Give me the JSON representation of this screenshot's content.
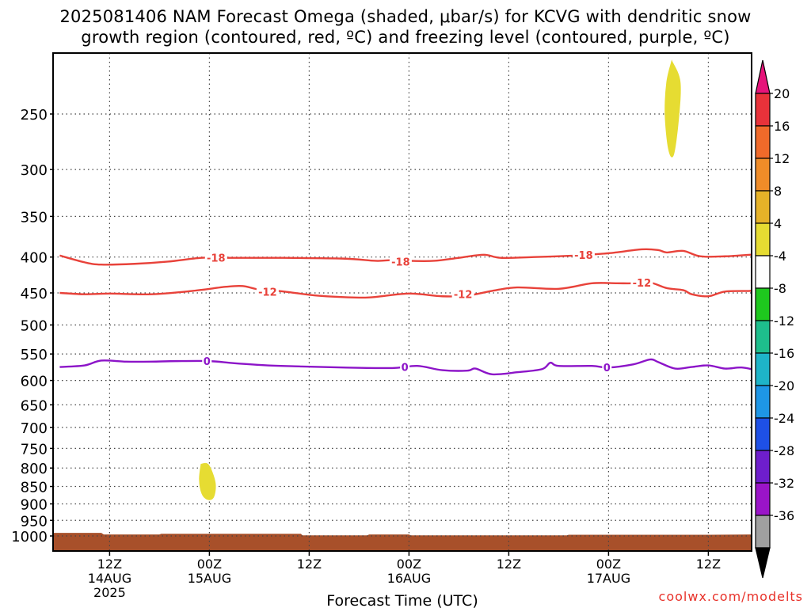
{
  "chart_data": {
    "type": "time-height",
    "title_line1": "2025081406 NAM Forecast Omega (shaded, μbar/s) for KCVG with dendritic snow",
    "title_line2": "growth region (contoured, red, ºC) and freezing level (contoured, purple, ºC)",
    "xlabel": "Forecast Time (UTC)",
    "x_ticks": [
      {
        "t": 6,
        "label": "12Z",
        "sub1": "14AUG",
        "sub2": "2025"
      },
      {
        "t": 18,
        "label": "00Z",
        "sub1": "15AUG",
        "sub2": ""
      },
      {
        "t": 30,
        "label": "12Z",
        "sub1": "",
        "sub2": ""
      },
      {
        "t": 42,
        "label": "00Z",
        "sub1": "16AUG",
        "sub2": ""
      },
      {
        "t": 54,
        "label": "12Z",
        "sub1": "",
        "sub2": ""
      },
      {
        "t": 66,
        "label": "00Z",
        "sub1": "17AUG",
        "sub2": ""
      },
      {
        "t": 78,
        "label": "12Z",
        "sub1": "",
        "sub2": ""
      }
    ],
    "x_range_hours": [
      0,
      84
    ],
    "y_pressure_ticks": [
      250,
      300,
      350,
      400,
      450,
      500,
      550,
      600,
      650,
      700,
      750,
      800,
      850,
      900,
      950,
      1000
    ],
    "y_range_hpa": [
      200,
      1020
    ],
    "y_scale": "log-pressure",
    "grid": true,
    "colorbar": {
      "labels": [
        "20",
        "16",
        "12",
        "8",
        "4",
        "-4",
        "-8",
        "-12",
        "-16",
        "-20",
        "-24",
        "-28",
        "-32",
        "-36"
      ],
      "colors": [
        "#e8323a",
        "#f06a2a",
        "#f08c28",
        "#e6b228",
        "#e6dc32",
        "#ffffff",
        "#1ec81e",
        "#1ebe8c",
        "#1eb4c8",
        "#1e96e6",
        "#1e50e6",
        "#6e1ecc",
        "#9a14c8",
        "#a0a0a0"
      ],
      "top_arrow_color": "#e6147a",
      "bottom_arrow_color": "#000000"
    },
    "omega_shaded_regions": [
      {
        "color": "#e6dc32",
        "range": "4 to 8",
        "points": [
          [
            73.6,
            210
          ],
          [
            74.6,
            225
          ],
          [
            74.4,
            255
          ],
          [
            73.8,
            286
          ],
          [
            73.2,
            280
          ],
          [
            72.8,
            250
          ],
          [
            73.0,
            225
          ]
        ]
      },
      {
        "color": "#e6dc32",
        "range": "4 to 8",
        "points": [
          [
            17.0,
            790
          ],
          [
            17.9,
            792
          ],
          [
            18.7,
            840
          ],
          [
            18.5,
            880
          ],
          [
            17.8,
            887
          ],
          [
            17.1,
            870
          ],
          [
            16.8,
            830
          ]
        ]
      }
    ],
    "dendritic_contours": [
      {
        "level": -18,
        "label": "-18",
        "color": "#e8423a",
        "points": [
          [
            0,
            398
          ],
          [
            3,
            407
          ],
          [
            5,
            410
          ],
          [
            9,
            409
          ],
          [
            13,
            406
          ],
          [
            17,
            401
          ],
          [
            20,
            401
          ],
          [
            26,
            401
          ],
          [
            34,
            402
          ],
          [
            38,
            405
          ],
          [
            40,
            404
          ],
          [
            42,
            405
          ],
          [
            45,
            405
          ],
          [
            48,
            401
          ],
          [
            51,
            397
          ],
          [
            53,
            401
          ],
          [
            57,
            400
          ],
          [
            62,
            398
          ],
          [
            66,
            395
          ],
          [
            70,
            390
          ],
          [
            72,
            391
          ],
          [
            73,
            394
          ],
          [
            75,
            392
          ],
          [
            77,
            399
          ],
          [
            80,
            399
          ],
          [
            83,
            397
          ],
          [
            84,
            397
          ]
        ],
        "label_positions": [
          [
            18.8,
            401
          ],
          [
            41.0,
            406
          ],
          [
            63.0,
            397
          ]
        ]
      },
      {
        "level": -12,
        "label": "-12",
        "color": "#e8423a",
        "points": [
          [
            0,
            450
          ],
          [
            3,
            452
          ],
          [
            6,
            451
          ],
          [
            11,
            452
          ],
          [
            16,
            447
          ],
          [
            20,
            441
          ],
          [
            22,
            440
          ],
          [
            24,
            445
          ],
          [
            27,
            448
          ],
          [
            31,
            454
          ],
          [
            36,
            457
          ],
          [
            38,
            456
          ],
          [
            42,
            451
          ],
          [
            46,
            455
          ],
          [
            49,
            454
          ],
          [
            52,
            447
          ],
          [
            55,
            442
          ],
          [
            60,
            444
          ],
          [
            64,
            436
          ],
          [
            67,
            436
          ],
          [
            69,
            436
          ],
          [
            71,
            435
          ],
          [
            73,
            443
          ],
          [
            75,
            446
          ],
          [
            76,
            452
          ],
          [
            78,
            455
          ],
          [
            80,
            448
          ],
          [
            83,
            447
          ],
          [
            84,
            445
          ]
        ],
        "label_positions": [
          [
            25.0,
            448
          ],
          [
            48.5,
            452
          ],
          [
            70.0,
            435
          ]
        ]
      },
      {
        "level": 0,
        "label": "0",
        "color": "#8c14c8",
        "points": [
          [
            0,
            574
          ],
          [
            3,
            571
          ],
          [
            5,
            562
          ],
          [
            8,
            564
          ],
          [
            11,
            564
          ],
          [
            14,
            563
          ],
          [
            18,
            563
          ],
          [
            21,
            567
          ],
          [
            25,
            571
          ],
          [
            29,
            573
          ],
          [
            34,
            575
          ],
          [
            40,
            576
          ],
          [
            43,
            572
          ],
          [
            46,
            580
          ],
          [
            49,
            581
          ],
          [
            50,
            577
          ],
          [
            52,
            588
          ],
          [
            55,
            584
          ],
          [
            58,
            578
          ],
          [
            59,
            566
          ],
          [
            60,
            572
          ],
          [
            64,
            572
          ],
          [
            66,
            575
          ],
          [
            69,
            569
          ],
          [
            71,
            560
          ],
          [
            72,
            565
          ],
          [
            74,
            577
          ],
          [
            76,
            574
          ],
          [
            78,
            571
          ],
          [
            80,
            577
          ],
          [
            82,
            575
          ],
          [
            84,
            581
          ]
        ],
        "label_positions": [
          [
            17.7,
            563
          ],
          [
            41.5,
            574
          ],
          [
            65.8,
            575
          ]
        ]
      }
    ],
    "terrain": {
      "color": "#a8502a",
      "surface_hpa": [
        [
          0,
          990
        ],
        [
          5,
          990
        ],
        [
          5.3,
          995
        ],
        [
          12,
          995
        ],
        [
          12.2,
          993
        ],
        [
          29,
          993
        ],
        [
          29.2,
          998
        ],
        [
          37,
          998
        ],
        [
          37.2,
          995
        ],
        [
          42,
          995
        ],
        [
          42.2,
          998
        ],
        [
          61,
          998
        ],
        [
          61.2,
          996
        ],
        [
          78,
          996
        ],
        [
          84,
          995
        ]
      ]
    }
  },
  "credit": "coolwx.com/modelts"
}
